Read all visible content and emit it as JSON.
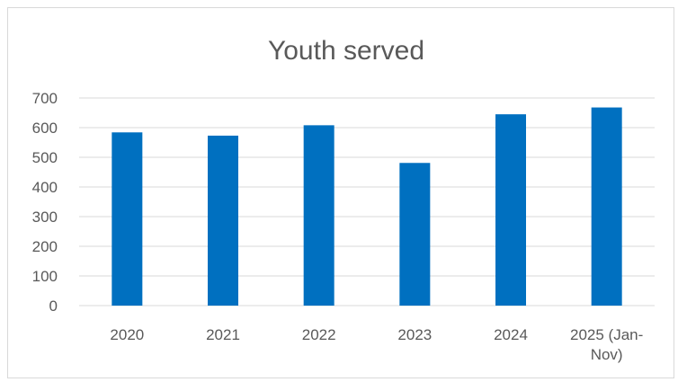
{
  "chart_data": {
    "type": "bar",
    "title": "Youth served",
    "categories": [
      "2020",
      "2021",
      "2022",
      "2023",
      "2024",
      "2025 (Jan-Nov)"
    ],
    "category_lines": [
      [
        "2020"
      ],
      [
        "2021"
      ],
      [
        "2022"
      ],
      [
        "2023"
      ],
      [
        "2024"
      ],
      [
        "2025 (Jan-",
        "Nov)"
      ]
    ],
    "values": [
      584,
      573,
      608,
      481,
      645,
      668
    ],
    "ylim": [
      0,
      700
    ],
    "yticks": [
      0,
      100,
      200,
      300,
      400,
      500,
      600,
      700
    ],
    "xlabel": "",
    "ylabel": "",
    "grid": true,
    "legend": "none",
    "bar_color": "#0070c0",
    "grid_color": "#d9d9d9"
  }
}
